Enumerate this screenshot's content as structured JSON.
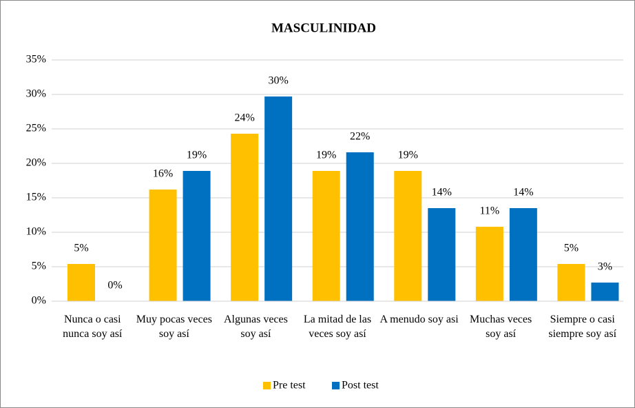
{
  "chart_data": {
    "type": "bar",
    "title": "MASCULINIDAD",
    "categories": [
      "Nunca o casi nunca soy así",
      "Muy pocas veces soy así",
      "Algunas veces soy así",
      "La mitad de las veces soy así",
      "A menudo soy asi",
      "Muchas veces soy así",
      "Siempre o casi siempre soy así"
    ],
    "series": [
      {
        "name": "Pre test",
        "color": "#ffc000",
        "values": [
          5.4,
          16.2,
          24.3,
          18.9,
          18.9,
          10.8,
          5.4
        ],
        "value_labels": [
          "5%",
          "16%",
          "24%",
          "19%",
          "19%",
          "11%",
          "5%"
        ]
      },
      {
        "name": "Post test",
        "color": "#0070c0",
        "values": [
          0,
          18.9,
          29.7,
          21.6,
          13.5,
          13.5,
          2.7
        ],
        "value_labels": [
          "0%",
          "19%",
          "30%",
          "22%",
          "14%",
          "14%",
          "3%"
        ]
      }
    ],
    "ylim": [
      0,
      35
    ],
    "yticks": [
      {
        "value": 0,
        "label": "0%"
      },
      {
        "value": 5,
        "label": "5%"
      },
      {
        "value": 10,
        "label": "10%"
      },
      {
        "value": 15,
        "label": "15%"
      },
      {
        "value": 20,
        "label": "20%"
      },
      {
        "value": 25,
        "label": "25%"
      },
      {
        "value": 30,
        "label": "30%"
      },
      {
        "value": 35,
        "label": "35%"
      }
    ],
    "grid": true,
    "legend": "bottom"
  }
}
